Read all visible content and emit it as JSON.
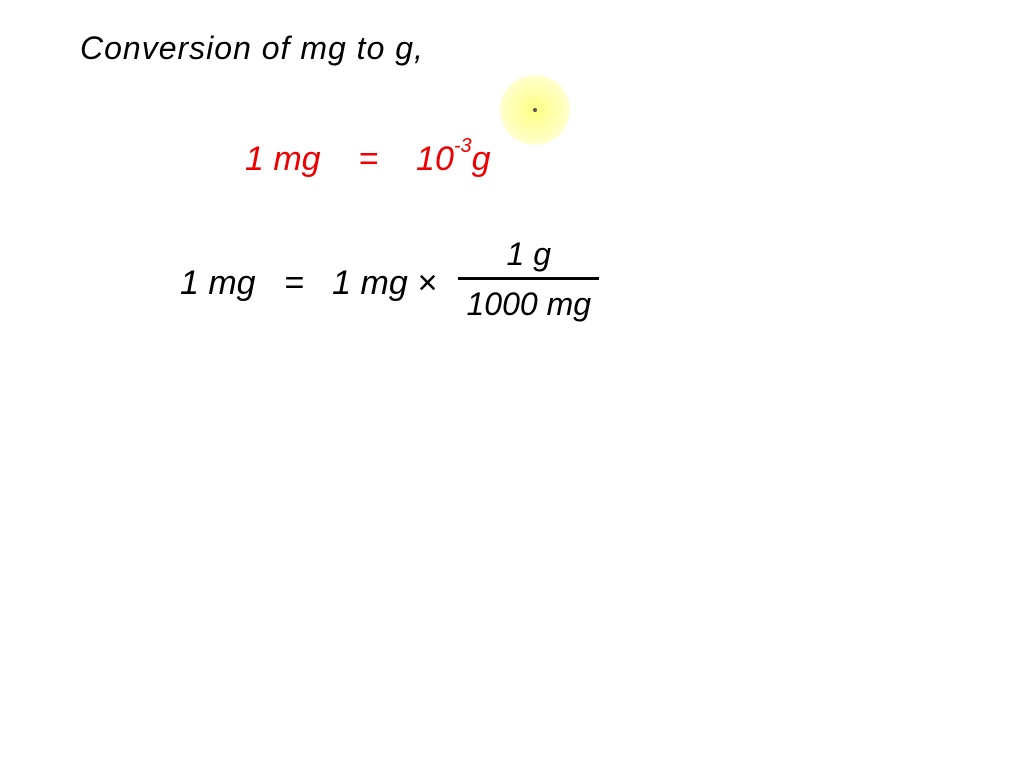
{
  "title": "Conversion of mg to g,",
  "equation1": {
    "lhs": "1 mg",
    "equals": "=",
    "base": "10",
    "exponent": "-3",
    "unit": "g"
  },
  "equation2": {
    "lhs": "1 mg",
    "equals": "=",
    "rhs_factor": "1 mg ×",
    "numerator": "1 g",
    "denominator": "1000 mg"
  },
  "colors": {
    "title_color": "#000000",
    "equation1_color": "#ee0000",
    "equation2_color": "#000000",
    "highlight_color": "rgba(255,255,100,0.7)",
    "background": "#ffffff"
  },
  "styling": {
    "font_family": "Comic Sans MS, cursive",
    "title_fontsize": 32,
    "equation_fontsize": 34,
    "exponent_fontsize": 20,
    "highlight_diameter": 70
  }
}
